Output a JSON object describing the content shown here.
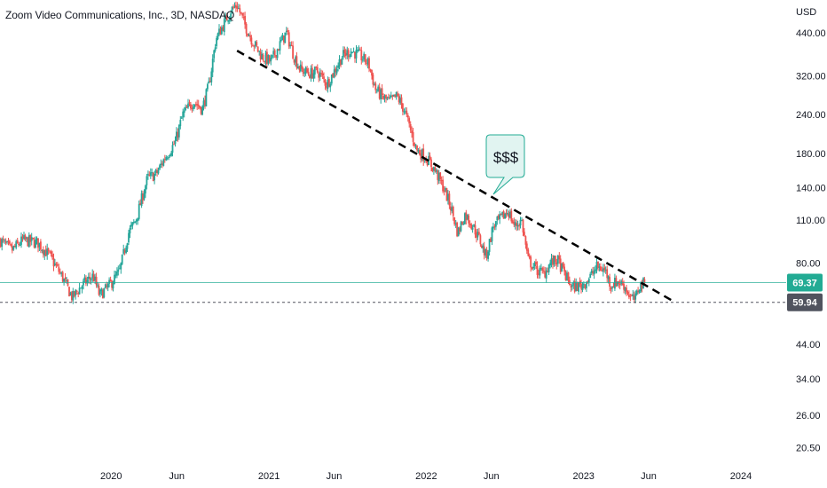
{
  "header": {
    "title": "Zoom Video Communications, Inc., 3D, NASDAQ"
  },
  "axis": {
    "currency_label": "USD"
  },
  "colors": {
    "up": "#26a69a",
    "down": "#ef5350",
    "last_price": "#22ab94",
    "low_price": "#50535e",
    "trendline": "#000000"
  },
  "callout": {
    "text": "$$$"
  },
  "chart_data": {
    "type": "candlestick",
    "title": "Zoom Video Communications, Inc., 3D, NASDAQ",
    "ylabel": "USD",
    "y_scale": "log",
    "ylim": [
      18.5,
      560
    ],
    "y_ticks": [
      20.5,
      26.0,
      34.0,
      44.0,
      80.0,
      110.0,
      140.0,
      180.0,
      240.0,
      320.0,
      440.0
    ],
    "y_tick_labels": [
      "20.50",
      "26.00",
      "34.00",
      "44.00",
      "80.00",
      "110.00",
      "140.00",
      "180.00",
      "240.00",
      "320.00",
      "440.00"
    ],
    "x_ticks": [
      {
        "label": "2020",
        "date": "2020-01-01"
      },
      {
        "label": "Jun",
        "date": "2020-06-01"
      },
      {
        "label": "2021",
        "date": "2021-01-01"
      },
      {
        "label": "Jun",
        "date": "2021-06-01"
      },
      {
        "label": "2022",
        "date": "2022-01-01"
      },
      {
        "label": "Jun",
        "date": "2022-06-01"
      },
      {
        "label": "2023",
        "date": "2023-01-01"
      },
      {
        "label": "Jun",
        "date": "2023-06-01"
      },
      {
        "label": "2024",
        "date": "2024-01-01"
      }
    ],
    "xlim": [
      "2019-04-18",
      "2024-04-15"
    ],
    "price_path": [
      [
        "2019-04-18",
        95
      ],
      [
        "2019-05-15",
        88
      ],
      [
        "2019-06-10",
        95
      ],
      [
        "2019-07-15",
        93
      ],
      [
        "2019-08-10",
        85
      ],
      [
        "2019-09-10",
        72
      ],
      [
        "2019-10-03",
        62
      ],
      [
        "2019-10-25",
        68
      ],
      [
        "2019-11-20",
        73
      ],
      [
        "2019-12-05",
        63
      ],
      [
        "2019-12-28",
        68
      ],
      [
        "2020-01-20",
        75
      ],
      [
        "2020-02-10",
        100
      ],
      [
        "2020-02-27",
        110
      ],
      [
        "2020-03-25",
        150
      ],
      [
        "2020-04-15",
        155
      ],
      [
        "2020-05-05",
        175
      ],
      [
        "2020-05-28",
        195
      ],
      [
        "2020-06-15",
        240
      ],
      [
        "2020-07-10",
        265
      ],
      [
        "2020-07-30",
        250
      ],
      [
        "2020-08-15",
        300
      ],
      [
        "2020-08-31",
        420
      ],
      [
        "2020-09-15",
        460
      ],
      [
        "2020-10-05",
        520
      ],
      [
        "2020-10-19",
        540
      ],
      [
        "2020-11-05",
        470
      ],
      [
        "2020-11-25",
        410
      ],
      [
        "2020-12-15",
        370
      ],
      [
        "2021-01-05",
        355
      ],
      [
        "2021-01-25",
        400
      ],
      [
        "2021-02-10",
        440
      ],
      [
        "2021-02-28",
        370
      ],
      [
        "2021-03-15",
        335
      ],
      [
        "2021-04-05",
        325
      ],
      [
        "2021-04-25",
        330
      ],
      [
        "2021-05-15",
        300
      ],
      [
        "2021-06-01",
        330
      ],
      [
        "2021-06-20",
        370
      ],
      [
        "2021-07-10",
        385
      ],
      [
        "2021-08-01",
        370
      ],
      [
        "2021-08-20",
        350
      ],
      [
        "2021-09-05",
        290
      ],
      [
        "2021-09-25",
        270
      ],
      [
        "2021-10-10",
        265
      ],
      [
        "2021-10-25",
        275
      ],
      [
        "2021-11-10",
        250
      ],
      [
        "2021-11-25",
        215
      ],
      [
        "2021-12-10",
        185
      ],
      [
        "2021-12-31",
        175
      ],
      [
        "2022-01-20",
        160
      ],
      [
        "2022-02-10",
        140
      ],
      [
        "2022-02-28",
        120
      ],
      [
        "2022-03-15",
        100
      ],
      [
        "2022-04-01",
        115
      ],
      [
        "2022-04-20",
        105
      ],
      [
        "2022-05-05",
        95
      ],
      [
        "2022-05-20",
        84
      ],
      [
        "2022-06-05",
        105
      ],
      [
        "2022-06-25",
        112
      ],
      [
        "2022-07-10",
        118
      ],
      [
        "2022-07-25",
        105
      ],
      [
        "2022-08-10",
        110
      ],
      [
        "2022-08-25",
        82
      ],
      [
        "2022-09-15",
        76
      ],
      [
        "2022-10-01",
        74
      ],
      [
        "2022-10-15",
        80
      ],
      [
        "2022-11-01",
        82
      ],
      [
        "2022-11-20",
        73
      ],
      [
        "2022-12-05",
        67
      ],
      [
        "2022-12-28",
        68
      ],
      [
        "2023-01-15",
        72
      ],
      [
        "2023-02-01",
        78
      ],
      [
        "2023-02-20",
        76
      ],
      [
        "2023-03-05",
        68
      ],
      [
        "2023-03-20",
        70
      ],
      [
        "2023-04-05",
        68
      ],
      [
        "2023-04-20",
        62
      ],
      [
        "2023-05-01",
        61
      ],
      [
        "2023-05-10",
        68
      ],
      [
        "2023-05-22",
        69
      ]
    ],
    "price_lines": [
      {
        "name": "last",
        "value": 69.37,
        "label": "69.37",
        "style": "solid"
      },
      {
        "name": "low",
        "value": 59.94,
        "label": "59.94",
        "style": "dashed"
      }
    ],
    "trendline": {
      "style": "dashed",
      "from": {
        "date": "2020-10-19",
        "value": 385
      },
      "to": {
        "date": "2023-08-01",
        "value": 60
      }
    },
    "annotations": [
      {
        "type": "callout",
        "text": "$$$"
      }
    ],
    "grid": false,
    "legend": "none"
  }
}
